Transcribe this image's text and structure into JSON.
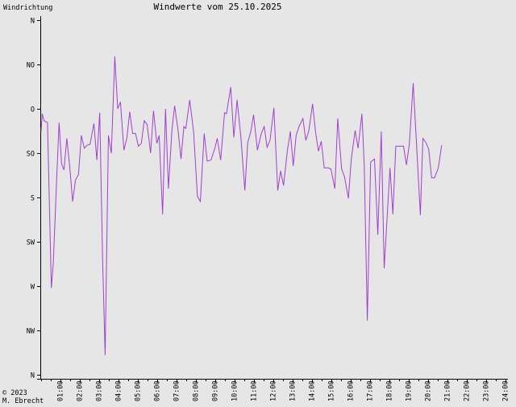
{
  "chart_data": {
    "type": "line",
    "title": "Windwerte vom 25.10.2025",
    "ylabel": "Windrichtung",
    "credit": [
      "© 2023",
      "M. Ebrecht"
    ],
    "x_ticks": [
      "01:00",
      "02:00",
      "03:00",
      "04:00",
      "05:00",
      "06:00",
      "07:00",
      "08:00",
      "09:00",
      "10:00",
      "11:00",
      "12:00",
      "13:00",
      "14:00",
      "15:00",
      "16:00",
      "17:00",
      "18:00",
      "19:00",
      "20:00",
      "21:00",
      "22:00",
      "23:00",
      "24:00"
    ],
    "y_ticks": [
      "N",
      "NW",
      "W",
      "SW",
      "S",
      "SO",
      "O",
      "NO",
      "N"
    ],
    "y_range_deg": [
      0,
      360
    ],
    "x_range_h": [
      0,
      24
    ],
    "grid": false,
    "line_color": "#a040d0",
    "series": [
      {
        "points": [
          [
            0.02,
            247
          ],
          [
            0.08,
            265
          ],
          [
            0.17,
            258
          ],
          [
            0.25,
            257
          ],
          [
            0.35,
            256
          ],
          [
            0.55,
            88
          ],
          [
            0.65,
            113
          ],
          [
            0.83,
            201
          ],
          [
            0.95,
            256
          ],
          [
            1.08,
            214
          ],
          [
            1.2,
            208
          ],
          [
            1.35,
            240
          ],
          [
            1.5,
            211
          ],
          [
            1.65,
            176
          ],
          [
            1.8,
            198
          ],
          [
            1.95,
            203
          ],
          [
            2.1,
            243
          ],
          [
            2.25,
            230
          ],
          [
            2.4,
            233
          ],
          [
            2.55,
            234
          ],
          [
            2.75,
            255
          ],
          [
            2.9,
            218
          ],
          [
            3.05,
            266
          ],
          [
            3.2,
            116
          ],
          [
            3.33,
            20
          ],
          [
            3.5,
            243
          ],
          [
            3.65,
            225
          ],
          [
            3.83,
            323
          ],
          [
            3.98,
            270
          ],
          [
            4.12,
            277
          ],
          [
            4.3,
            228
          ],
          [
            4.45,
            240
          ],
          [
            4.6,
            267
          ],
          [
            4.75,
            245
          ],
          [
            4.9,
            245
          ],
          [
            5.05,
            232
          ],
          [
            5.2,
            235
          ],
          [
            5.35,
            258
          ],
          [
            5.5,
            254
          ],
          [
            5.68,
            225
          ],
          [
            5.83,
            268
          ],
          [
            6.0,
            235
          ],
          [
            6.12,
            243
          ],
          [
            6.3,
            163
          ],
          [
            6.45,
            270
          ],
          [
            6.6,
            189
          ],
          [
            6.78,
            248
          ],
          [
            6.92,
            273
          ],
          [
            7.1,
            248
          ],
          [
            7.25,
            219
          ],
          [
            7.4,
            252
          ],
          [
            7.5,
            250
          ],
          [
            7.7,
            279
          ],
          [
            7.9,
            247
          ],
          [
            8.1,
            181
          ],
          [
            8.25,
            176
          ],
          [
            8.45,
            245
          ],
          [
            8.6,
            217
          ],
          [
            8.8,
            218
          ],
          [
            9.0,
            230
          ],
          [
            9.12,
            240
          ],
          [
            9.3,
            218
          ],
          [
            9.5,
            266
          ],
          [
            9.6,
            265
          ],
          [
            9.82,
            292
          ],
          [
            9.98,
            241
          ],
          [
            10.15,
            279
          ],
          [
            10.35,
            240
          ],
          [
            10.55,
            187
          ],
          [
            10.7,
            236
          ],
          [
            10.85,
            246
          ],
          [
            11.0,
            264
          ],
          [
            11.2,
            228
          ],
          [
            11.4,
            245
          ],
          [
            11.55,
            252
          ],
          [
            11.7,
            231
          ],
          [
            11.85,
            238
          ],
          [
            12.05,
            271
          ],
          [
            12.25,
            187
          ],
          [
            12.4,
            207
          ],
          [
            12.55,
            192
          ],
          [
            12.75,
            228
          ],
          [
            12.9,
            247
          ],
          [
            13.05,
            212
          ],
          [
            13.2,
            243
          ],
          [
            13.35,
            252
          ],
          [
            13.55,
            260
          ],
          [
            13.7,
            238
          ],
          [
            13.85,
            247
          ],
          [
            14.05,
            275
          ],
          [
            14.2,
            247
          ],
          [
            14.35,
            227
          ],
          [
            14.5,
            237
          ],
          [
            14.65,
            210
          ],
          [
            14.85,
            210
          ],
          [
            15.0,
            209
          ],
          [
            15.2,
            189
          ],
          [
            15.35,
            260
          ],
          [
            15.55,
            209
          ],
          [
            15.7,
            201
          ],
          [
            15.9,
            179
          ],
          [
            16.05,
            219
          ],
          [
            16.25,
            248
          ],
          [
            16.4,
            230
          ],
          [
            16.6,
            265
          ],
          [
            16.72,
            212
          ],
          [
            16.88,
            55
          ],
          [
            17.05,
            216
          ],
          [
            17.25,
            219
          ],
          [
            17.42,
            142
          ],
          [
            17.6,
            247
          ],
          [
            17.75,
            108
          ],
          [
            18.05,
            210
          ],
          [
            18.2,
            163
          ],
          [
            18.35,
            232
          ],
          [
            18.55,
            232
          ],
          [
            18.75,
            232
          ],
          [
            18.9,
            213
          ],
          [
            19.05,
            234
          ],
          [
            19.25,
            296
          ],
          [
            19.45,
            224
          ],
          [
            19.62,
            162
          ],
          [
            19.75,
            240
          ],
          [
            19.9,
            236
          ],
          [
            20.05,
            229
          ],
          [
            20.2,
            200
          ],
          [
            20.35,
            200
          ],
          [
            20.55,
            210
          ],
          [
            20.72,
            233
          ]
        ]
      }
    ]
  }
}
